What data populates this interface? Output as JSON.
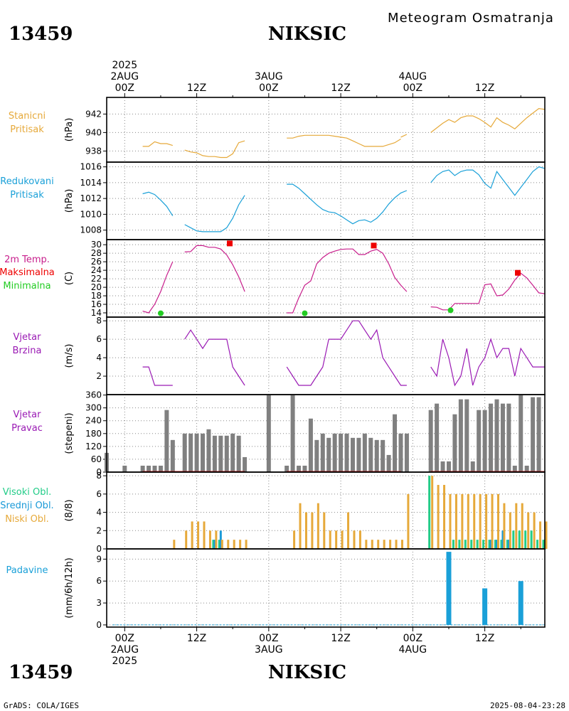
{
  "header": {
    "station_id": "13459",
    "station_name": "NIKSIC",
    "subtitle": "Meteogram Osmatranja"
  },
  "footer": {
    "station_id": "13459",
    "station_name": "NIKSIC",
    "left_credit": "GrADS: COLA/IGES",
    "timestamp": "2025-08-04-23:28"
  },
  "time_axis": {
    "top_year": "2025",
    "top_labels": [
      {
        "t": 0,
        "lines": [
          "2AUG",
          "00Z"
        ]
      },
      {
        "t": 12,
        "lines": [
          "12Z"
        ]
      },
      {
        "t": 24,
        "lines": [
          "3AUG",
          "00Z"
        ]
      },
      {
        "t": 36,
        "lines": [
          "12Z"
        ]
      },
      {
        "t": 48,
        "lines": [
          "4AUG",
          "00Z"
        ]
      },
      {
        "t": 60,
        "lines": [
          "12Z"
        ]
      }
    ],
    "bottom_labels": [
      {
        "t": 0,
        "lines": [
          "00Z",
          "2AUG",
          "2025"
        ]
      },
      {
        "t": 12,
        "lines": [
          "12Z"
        ]
      },
      {
        "t": 24,
        "lines": [
          "00Z",
          "3AUG"
        ]
      },
      {
        "t": 36,
        "lines": [
          "12Z"
        ]
      },
      {
        "t": 48,
        "lines": [
          "00Z",
          "4AUG"
        ]
      },
      {
        "t": 60,
        "lines": [
          "12Z"
        ]
      }
    ],
    "t_range": [
      -3,
      70
    ]
  },
  "colors": {
    "pressure": "#e6a93a",
    "reduced": "#1aa0d8",
    "temp": "#c81e8c",
    "tmax": "#ee0000",
    "tmin": "#22cc22",
    "wind": "#9a1ab4",
    "dir_bar": "#808080",
    "dir_line": "#cc2222",
    "cloud_high": "#22cc88",
    "cloud_mid": "#1a9ad8",
    "cloud_low": "#e6a93a",
    "precip": "#1aa0d8"
  },
  "chart_data": [
    {
      "type": "line",
      "id": "station_pressure",
      "title_lines": [
        "Stanicni",
        "Pritisak"
      ],
      "title_colors": [
        "#e6a93a",
        "#e6a93a"
      ],
      "ylabel": "(hPa)",
      "ylim": [
        936.8,
        943.8
      ],
      "yticks": [
        938,
        940,
        942
      ],
      "segments": [
        {
          "t": [
            3,
            4,
            5,
            6,
            7,
            8
          ],
          "y": [
            938.5,
            938.5,
            939.0,
            938.8,
            938.8,
            938.6
          ]
        },
        {
          "t": [
            10,
            11,
            12,
            13,
            14,
            15,
            16,
            17,
            18,
            19,
            20
          ],
          "y": [
            938.1,
            937.9,
            937.8,
            937.5,
            937.4,
            937.4,
            937.3,
            937.3,
            937.7,
            938.9,
            939.1
          ]
        },
        {
          "t": [
            27,
            28,
            29,
            30,
            31,
            32,
            33,
            34,
            35,
            36,
            37,
            38,
            39,
            40,
            41,
            42,
            43,
            44,
            45,
            46
          ],
          "y": [
            939.4,
            939.4,
            939.6,
            939.7,
            939.7,
            939.7,
            939.7,
            939.7,
            939.6,
            939.5,
            939.4,
            939.1,
            938.8,
            938.5,
            938.5,
            938.5,
            938.5,
            938.7,
            938.9,
            939.3
          ]
        },
        {
          "t": [
            46,
            47
          ],
          "y": [
            939.5,
            939.8
          ]
        },
        {
          "t": [
            51,
            52,
            53,
            54,
            55,
            56,
            57,
            58,
            59,
            60,
            61,
            62,
            63,
            64,
            65,
            66,
            67,
            68,
            69,
            70
          ],
          "y": [
            940.0,
            940.5,
            941.0,
            941.4,
            941.1,
            941.6,
            941.8,
            941.8,
            941.5,
            941.1,
            940.6,
            941.6,
            941.1,
            940.8,
            940.4,
            941.0,
            941.6,
            942.1,
            942.6,
            942.5
          ]
        }
      ]
    },
    {
      "type": "line",
      "id": "reduced_pressure",
      "title_lines": [
        "Redukovani",
        "Pritisak"
      ],
      "title_colors": [
        "#1aa0d8",
        "#1aa0d8"
      ],
      "ylabel": "(hPa)",
      "ylim": [
        1006.8,
        1016.6
      ],
      "yticks": [
        1008,
        1010,
        1012,
        1014,
        1016
      ],
      "segments": [
        {
          "t": [
            3,
            4,
            5,
            6,
            7,
            8
          ],
          "y": [
            1012.6,
            1012.8,
            1012.5,
            1011.8,
            1011.0,
            1009.8
          ]
        },
        {
          "t": [
            10,
            11,
            12,
            13,
            14,
            15,
            16,
            17,
            18,
            19,
            20
          ],
          "y": [
            1008.7,
            1008.3,
            1007.9,
            1007.8,
            1007.8,
            1007.8,
            1007.8,
            1008.3,
            1009.5,
            1011.2,
            1012.4
          ]
        },
        {
          "t": [
            27,
            28,
            29,
            30,
            31,
            32,
            33,
            34,
            35,
            36,
            37,
            38,
            39,
            40,
            41,
            42,
            43,
            44,
            45,
            46,
            47
          ],
          "y": [
            1013.8,
            1013.8,
            1013.3,
            1012.6,
            1011.9,
            1011.2,
            1010.6,
            1010.3,
            1010.2,
            1009.8,
            1009.3,
            1008.8,
            1009.2,
            1009.3,
            1009.0,
            1009.5,
            1010.3,
            1011.3,
            1012.1,
            1012.7,
            1013.0
          ]
        },
        {
          "t": [
            51,
            52,
            53,
            54,
            55,
            56,
            57,
            58,
            59,
            60,
            61,
            62,
            63,
            64,
            65,
            66,
            67,
            68,
            69,
            70
          ],
          "y": [
            1014.0,
            1014.9,
            1015.4,
            1015.6,
            1014.9,
            1015.4,
            1015.6,
            1015.6,
            1015.0,
            1013.9,
            1013.3,
            1015.4,
            1014.4,
            1013.4,
            1012.4,
            1013.4,
            1014.4,
            1015.4,
            1016.0,
            1015.8
          ]
        }
      ]
    },
    {
      "type": "line",
      "id": "temperature",
      "title_lines": [
        "2m Temp.",
        "Maksimalna",
        "Minimalna"
      ],
      "title_colors": [
        "#c81e8c",
        "#ee0000",
        "#22cc22"
      ],
      "ylabel": "(C)",
      "ylim": [
        13.0,
        31.2
      ],
      "yticks": [
        14,
        16,
        18,
        20,
        22,
        24,
        26,
        28,
        30
      ],
      "segments": [
        {
          "t": [
            3,
            4,
            5,
            6,
            7,
            8
          ],
          "y": [
            14.4,
            14.0,
            16.0,
            19.0,
            22.8,
            26.0
          ]
        },
        {
          "t": [
            10,
            11,
            12,
            13,
            14,
            15,
            16,
            17,
            18,
            19,
            20
          ],
          "y": [
            28.3,
            28.4,
            29.8,
            29.8,
            29.4,
            29.4,
            29.0,
            27.6,
            25.3,
            22.5,
            19.0
          ]
        },
        {
          "t": [
            27,
            28,
            29,
            30,
            31,
            32,
            33,
            34,
            35,
            36,
            37,
            38,
            39,
            40,
            41,
            42,
            43,
            44,
            45,
            46,
            47
          ],
          "y": [
            14.0,
            14.0,
            17.5,
            20.5,
            21.5,
            25.5,
            27.0,
            28.0,
            28.5,
            28.9,
            29.0,
            29.0,
            27.7,
            27.7,
            28.5,
            28.9,
            28.0,
            25.5,
            22.3,
            20.5,
            19.0
          ]
        },
        {
          "t": [
            51,
            52,
            53,
            54,
            55,
            56,
            57,
            58,
            59,
            60,
            61,
            62,
            63,
            64,
            65,
            66,
            67,
            68,
            69,
            70
          ],
          "y": [
            15.4,
            15.3,
            14.7,
            14.7,
            16.2,
            16.2,
            16.2,
            16.2,
            16.2,
            20.6,
            20.8,
            18.0,
            18.2,
            19.6,
            21.7,
            23.3,
            22.2,
            20.5,
            18.7,
            18.5
          ]
        }
      ],
      "max_points": {
        "t": [
          17.5,
          41.5,
          65.5
        ],
        "y": [
          30.3,
          29.8,
          23.4
        ]
      },
      "min_points": {
        "t": [
          6,
          30,
          54.3
        ],
        "y": [
          13.9,
          13.9,
          14.6
        ]
      }
    },
    {
      "type": "line",
      "id": "wind_speed",
      "title_lines": [
        "Vjetar",
        "Brzina"
      ],
      "title_colors": [
        "#9a1ab4",
        "#9a1ab4"
      ],
      "ylabel": "(m/s)",
      "ylim": [
        0,
        8.4
      ],
      "yticks": [
        2,
        4,
        6,
        8
      ],
      "segments": [
        {
          "t": [
            3,
            4,
            5,
            6,
            7,
            8
          ],
          "y": [
            3,
            3,
            1,
            1,
            1,
            1
          ]
        },
        {
          "t": [
            10,
            11,
            12,
            13,
            14,
            15,
            16,
            17,
            18,
            19,
            20
          ],
          "y": [
            6,
            7,
            6,
            5,
            6,
            6,
            6,
            6,
            3,
            2,
            1
          ]
        },
        {
          "t": [
            27,
            28,
            29,
            30,
            31,
            32,
            33,
            34,
            35,
            36,
            37,
            38,
            39,
            40,
            41,
            42,
            43,
            44,
            45,
            46,
            47
          ],
          "y": [
            3,
            2,
            1,
            1,
            1,
            2,
            3,
            6,
            6,
            6,
            7,
            8,
            8,
            7,
            6,
            7,
            4,
            3,
            2,
            1,
            1
          ]
        },
        {
          "t": [
            51,
            52,
            53,
            54,
            55,
            56,
            57,
            58,
            59,
            60,
            61,
            62,
            63,
            64,
            65,
            66,
            67,
            68,
            69,
            70
          ],
          "y": [
            3,
            2,
            6,
            4,
            1,
            2,
            5,
            1,
            3,
            4,
            6,
            4,
            5,
            5,
            2,
            5,
            4,
            3,
            3,
            3
          ]
        }
      ]
    },
    {
      "type": "bar",
      "id": "wind_direction",
      "title_lines": [
        "Vjetar",
        "Pravac"
      ],
      "title_colors": [
        "#9a1ab4",
        "#9a1ab4"
      ],
      "ylabel": "(stepeni)",
      "ylim": [
        0,
        362
      ],
      "yticks": [
        0,
        60,
        120,
        180,
        240,
        300,
        360
      ],
      "t": [
        -3,
        0,
        3,
        4,
        5,
        6,
        7,
        8,
        10,
        11,
        12,
        13,
        14,
        15,
        16,
        17,
        18,
        19,
        20,
        24,
        27,
        28,
        29,
        30,
        31,
        32,
        33,
        34,
        35,
        36,
        37,
        38,
        39,
        40,
        41,
        42,
        43,
        44,
        45,
        46,
        47,
        51,
        52,
        53,
        54,
        55,
        56,
        57,
        58,
        59,
        60,
        61,
        62,
        63,
        64,
        65,
        66,
        67,
        68,
        69,
        70
      ],
      "values": [
        90,
        30,
        30,
        30,
        30,
        30,
        290,
        150,
        180,
        180,
        180,
        180,
        200,
        170,
        170,
        170,
        180,
        170,
        70,
        360,
        30,
        360,
        30,
        30,
        250,
        150,
        180,
        160,
        180,
        180,
        180,
        160,
        160,
        180,
        160,
        150,
        150,
        80,
        270,
        180,
        180,
        290,
        320,
        50,
        50,
        270,
        340,
        340,
        50,
        290,
        290,
        320,
        340,
        320,
        320,
        30,
        360,
        30,
        350,
        350,
        0
      ],
      "baseline_segments": [
        [
          3,
          20
        ],
        [
          27,
          46
        ],
        [
          51,
          70
        ]
      ]
    },
    {
      "type": "bar",
      "id": "clouds",
      "title_lines": [
        "Visoki Obl.",
        "Srednji Obl.",
        "Niski Obl."
      ],
      "title_colors": [
        "#22cc88",
        "#1a9ad8",
        "#e6a93a"
      ],
      "ylabel": "(8/8)",
      "ylim": [
        0,
        8.4
      ],
      "yticks": [
        0,
        2,
        4,
        6,
        8
      ],
      "t": [
        3,
        4,
        5,
        6,
        7,
        8,
        10,
        11,
        12,
        13,
        14,
        15,
        16,
        17,
        18,
        19,
        20,
        27,
        28,
        29,
        30,
        31,
        32,
        33,
        34,
        35,
        36,
        37,
        38,
        39,
        40,
        41,
        42,
        43,
        44,
        45,
        46,
        47,
        51,
        52,
        53,
        54,
        55,
        56,
        57,
        58,
        59,
        60,
        61,
        62,
        63,
        64,
        65,
        66,
        67,
        68,
        69,
        70
      ],
      "series": [
        {
          "name": "Visoki Obl.",
          "values": [
            0,
            0,
            0,
            0,
            0,
            0,
            0,
            0,
            0,
            0,
            0,
            1,
            1,
            0,
            0,
            0,
            0,
            0,
            0,
            0,
            0,
            0,
            0,
            0,
            0,
            0,
            0,
            0,
            0,
            0,
            0,
            0,
            0,
            0,
            0,
            0,
            0,
            0,
            8,
            0,
            0,
            0,
            1,
            1,
            1,
            1,
            1,
            1,
            1,
            1,
            1,
            1,
            2,
            2,
            2,
            2,
            1,
            1
          ]
        },
        {
          "name": "Srednji Obl.",
          "values": [
            0,
            0,
            0,
            0,
            0,
            0,
            0,
            0,
            0,
            0,
            0,
            1,
            2,
            0,
            0,
            0,
            0,
            0,
            0,
            0,
            0,
            0,
            0,
            0,
            0,
            0,
            0,
            0,
            0,
            0,
            0,
            0,
            0,
            0,
            0,
            0,
            0,
            0,
            0,
            0,
            0,
            0,
            0,
            0,
            0,
            0,
            0,
            0,
            1,
            1,
            2,
            1,
            0,
            0,
            0,
            0,
            0,
            0
          ]
        },
        {
          "name": "Niski Obl.",
          "values": [
            0,
            0,
            0,
            0,
            0,
            1,
            2,
            3,
            3,
            3,
            2,
            2,
            1,
            1,
            1,
            1,
            1,
            0,
            2,
            5,
            4,
            4,
            5,
            4,
            2,
            2,
            2,
            4,
            2,
            2,
            1,
            1,
            1,
            1,
            1,
            1,
            1,
            6,
            8,
            7,
            7,
            6,
            6,
            6,
            6,
            6,
            6,
            6,
            6,
            6,
            5,
            4,
            5,
            5,
            4,
            4,
            3,
            3
          ]
        }
      ]
    },
    {
      "type": "bar",
      "id": "precipitation",
      "title_lines": [
        "Padavine"
      ],
      "title_colors": [
        "#1aa0d8"
      ],
      "ylabel": "(mm/6h/12h)",
      "ylim": [
        -0.3,
        10.4
      ],
      "yticks": [
        0,
        3,
        6,
        9
      ],
      "t": [
        54,
        60,
        66
      ],
      "values": [
        10,
        5,
        6
      ],
      "zero_segments": [
        [
          -2,
          70
        ]
      ]
    }
  ]
}
